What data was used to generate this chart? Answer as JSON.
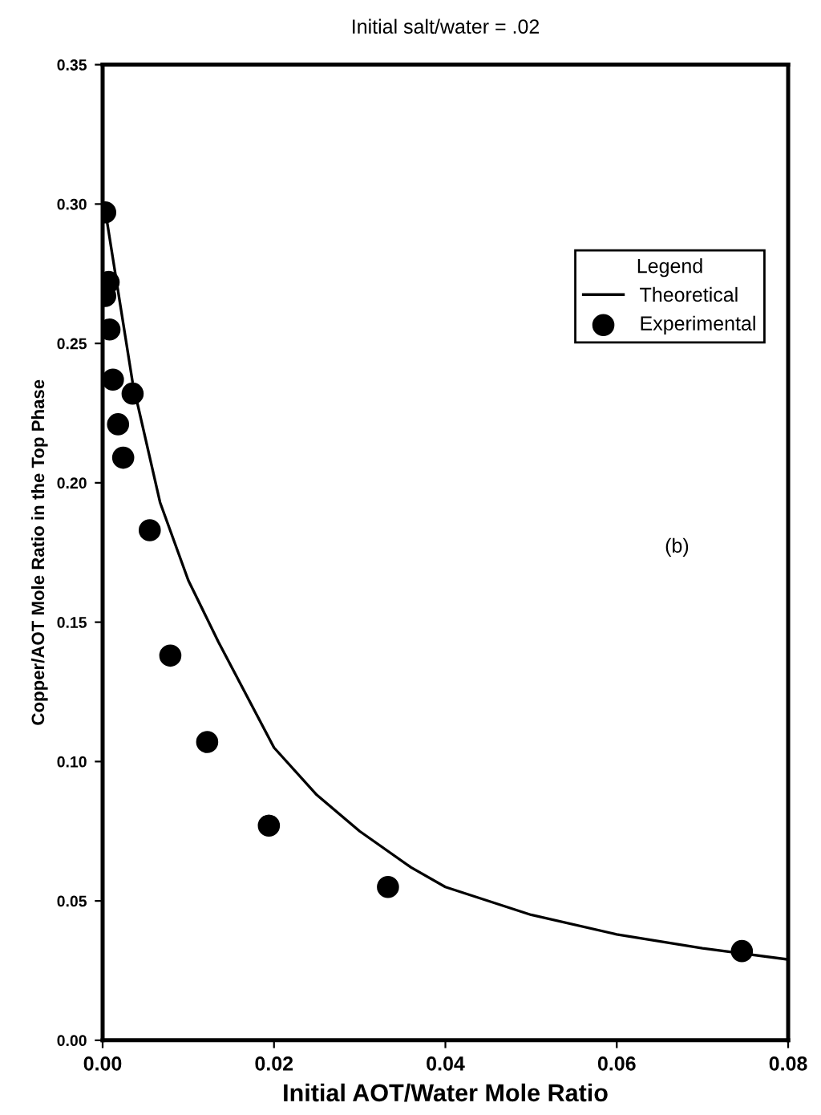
{
  "chart_data": {
    "type": "scatter",
    "title": "Initial salt/water = .02",
    "xlabel": "Initial AOT/Water Mole Ratio",
    "ylabel": "Copper/AOT Mole Ratio in the Top Phase",
    "legend_title": "Legend",
    "legend": "top right",
    "annotations": [
      "(b)"
    ],
    "xlim": [
      0,
      0.08
    ],
    "ylim": [
      0,
      0.35
    ],
    "xticks": [
      {
        "value": 0,
        "label": "0.00"
      },
      {
        "value": 0.02,
        "label": "0.02"
      },
      {
        "value": 0.04,
        "label": "0.04"
      },
      {
        "value": 0.06,
        "label": "0.06"
      },
      {
        "value": 0.08,
        "label": "0.08"
      }
    ],
    "yticks": [
      {
        "value": 0,
        "label": "0.00"
      },
      {
        "value": 0.05,
        "label": "0.05"
      },
      {
        "value": 0.1,
        "label": "0.10"
      },
      {
        "value": 0.15,
        "label": "0.15"
      },
      {
        "value": 0.2,
        "label": "0.20"
      },
      {
        "value": 0.25,
        "label": "0.25"
      },
      {
        "value": 0.3,
        "label": "0.30"
      },
      {
        "value": 0.35,
        "label": "0.35"
      }
    ],
    "grid": false,
    "series": [
      {
        "name": "Theoretical",
        "type": "line",
        "color": "#000000",
        "line_style": "solid",
        "marker": "none",
        "x": [
          0,
          0.0005,
          0.0035,
          0.0067,
          0.01,
          0.0135,
          0.02,
          0.025,
          0.03,
          0.036,
          0.04,
          0.05,
          0.06,
          0.07,
          0.08
        ],
        "values": [
          0.3,
          0.294,
          0.236,
          0.193,
          0.165,
          0.143,
          0.105,
          0.088,
          0.075,
          0.062,
          0.055,
          0.045,
          0.038,
          0.033,
          0.029
        ]
      },
      {
        "name": "Experimental",
        "color": "#000000",
        "marker": "circle",
        "x": [
          0.0003,
          0.0007,
          0.0003,
          0.0008,
          0.0012,
          0.0035,
          0.0018,
          0.0024,
          0.0055,
          0.0079,
          0.0122,
          0.0194,
          0.0333,
          0.0746
        ],
        "values": [
          0.297,
          0.272,
          0.267,
          0.255,
          0.237,
          0.232,
          0.221,
          0.209,
          0.183,
          0.138,
          0.107,
          0.077,
          0.055,
          0.032
        ]
      }
    ]
  }
}
